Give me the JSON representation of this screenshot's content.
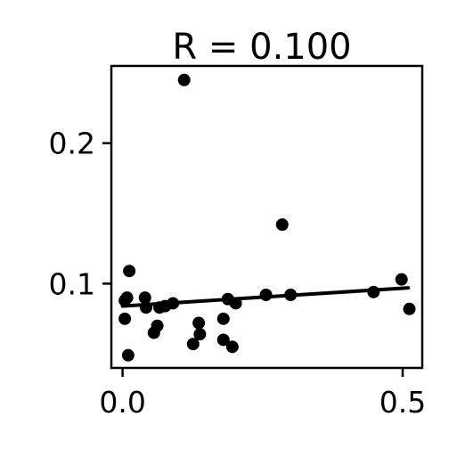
{
  "chart_data": {
    "type": "scatter",
    "title": "R = 0.100",
    "xlabel": "",
    "ylabel": "",
    "xlim": [
      -0.02,
      0.535
    ],
    "ylim": [
      0.04,
      0.255
    ],
    "x_ticks": [
      {
        "value": 0.0,
        "label": "0.0"
      },
      {
        "value": 0.5,
        "label": "0.5"
      }
    ],
    "y_ticks": [
      {
        "value": 0.1,
        "label": "0.1"
      },
      {
        "value": 0.2,
        "label": "0.2"
      }
    ],
    "grid": false,
    "points": [
      {
        "x": 0.004,
        "y": 0.088
      },
      {
        "x": 0.004,
        "y": 0.075
      },
      {
        "x": 0.008,
        "y": 0.09
      },
      {
        "x": 0.012,
        "y": 0.109
      },
      {
        "x": 0.01,
        "y": 0.049
      },
      {
        "x": 0.04,
        "y": 0.09
      },
      {
        "x": 0.042,
        "y": 0.083
      },
      {
        "x": 0.056,
        "y": 0.065
      },
      {
        "x": 0.062,
        "y": 0.07
      },
      {
        "x": 0.066,
        "y": 0.083
      },
      {
        "x": 0.076,
        "y": 0.084
      },
      {
        "x": 0.09,
        "y": 0.086
      },
      {
        "x": 0.11,
        "y": 0.245
      },
      {
        "x": 0.126,
        "y": 0.057
      },
      {
        "x": 0.136,
        "y": 0.072
      },
      {
        "x": 0.138,
        "y": 0.064
      },
      {
        "x": 0.18,
        "y": 0.075
      },
      {
        "x": 0.18,
        "y": 0.06
      },
      {
        "x": 0.188,
        "y": 0.089
      },
      {
        "x": 0.196,
        "y": 0.055
      },
      {
        "x": 0.202,
        "y": 0.086
      },
      {
        "x": 0.256,
        "y": 0.092
      },
      {
        "x": 0.285,
        "y": 0.142
      },
      {
        "x": 0.3,
        "y": 0.092
      },
      {
        "x": 0.448,
        "y": 0.094
      },
      {
        "x": 0.498,
        "y": 0.103
      },
      {
        "x": 0.512,
        "y": 0.082
      }
    ],
    "regression_line": {
      "x": [
        0.0,
        0.51
      ],
      "y": [
        0.084,
        0.097
      ]
    },
    "colors": {
      "points": "#000000",
      "line": "#000000",
      "axes": "#000000",
      "background": "#ffffff"
    }
  }
}
